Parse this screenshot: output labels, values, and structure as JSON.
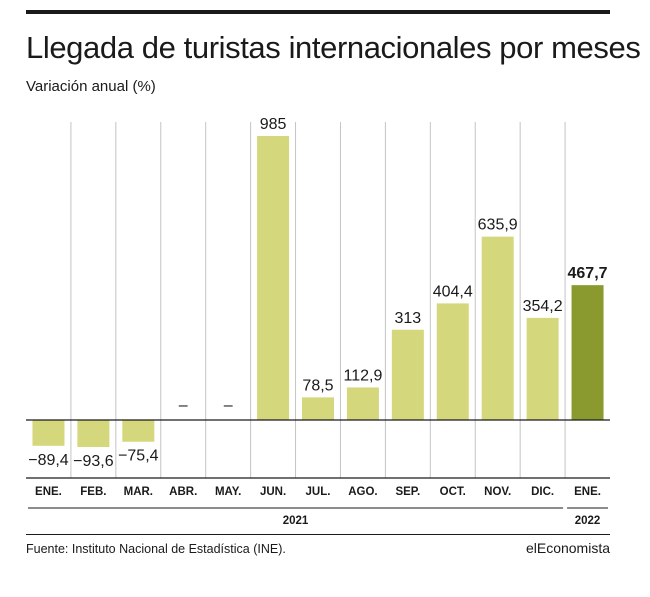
{
  "title": "Llegada de turistas internacionales por meses",
  "subtitle": "Variación anual (%)",
  "source": "Fuente: Instituto Nacional de Estadística (INE).",
  "brand": "elEconomista",
  "colors": {
    "bar": "#d4d77c",
    "highlight": "#8a9a2f",
    "grid": "#c4c4c4",
    "axis": "#1a1a1a"
  },
  "chart_data": {
    "type": "bar",
    "categories": [
      "ENE.",
      "FEB.",
      "MAR.",
      "ABR.",
      "MAY.",
      "JUN.",
      "JUL.",
      "AGO.",
      "SEP.",
      "OCT.",
      "NOV.",
      "DIC.",
      "ENE."
    ],
    "values": [
      -89.4,
      -93.6,
      -75.4,
      null,
      null,
      985,
      78.5,
      112.9,
      313,
      404.4,
      635.9,
      354.2,
      467.7
    ],
    "value_labels": [
      "−89,4",
      "−93,6",
      "−75,4",
      "–",
      "–",
      "985",
      "78,5",
      "112,9",
      "313",
      "404,4",
      "635,9",
      "354,2",
      "467,7"
    ],
    "highlight_index": 12,
    "year_groups": [
      {
        "label": "2021",
        "start": 0,
        "end": 11
      },
      {
        "label": "2022",
        "start": 12,
        "end": 12
      }
    ],
    "ylim": [
      -105,
      1000
    ],
    "grid": "vertical"
  }
}
